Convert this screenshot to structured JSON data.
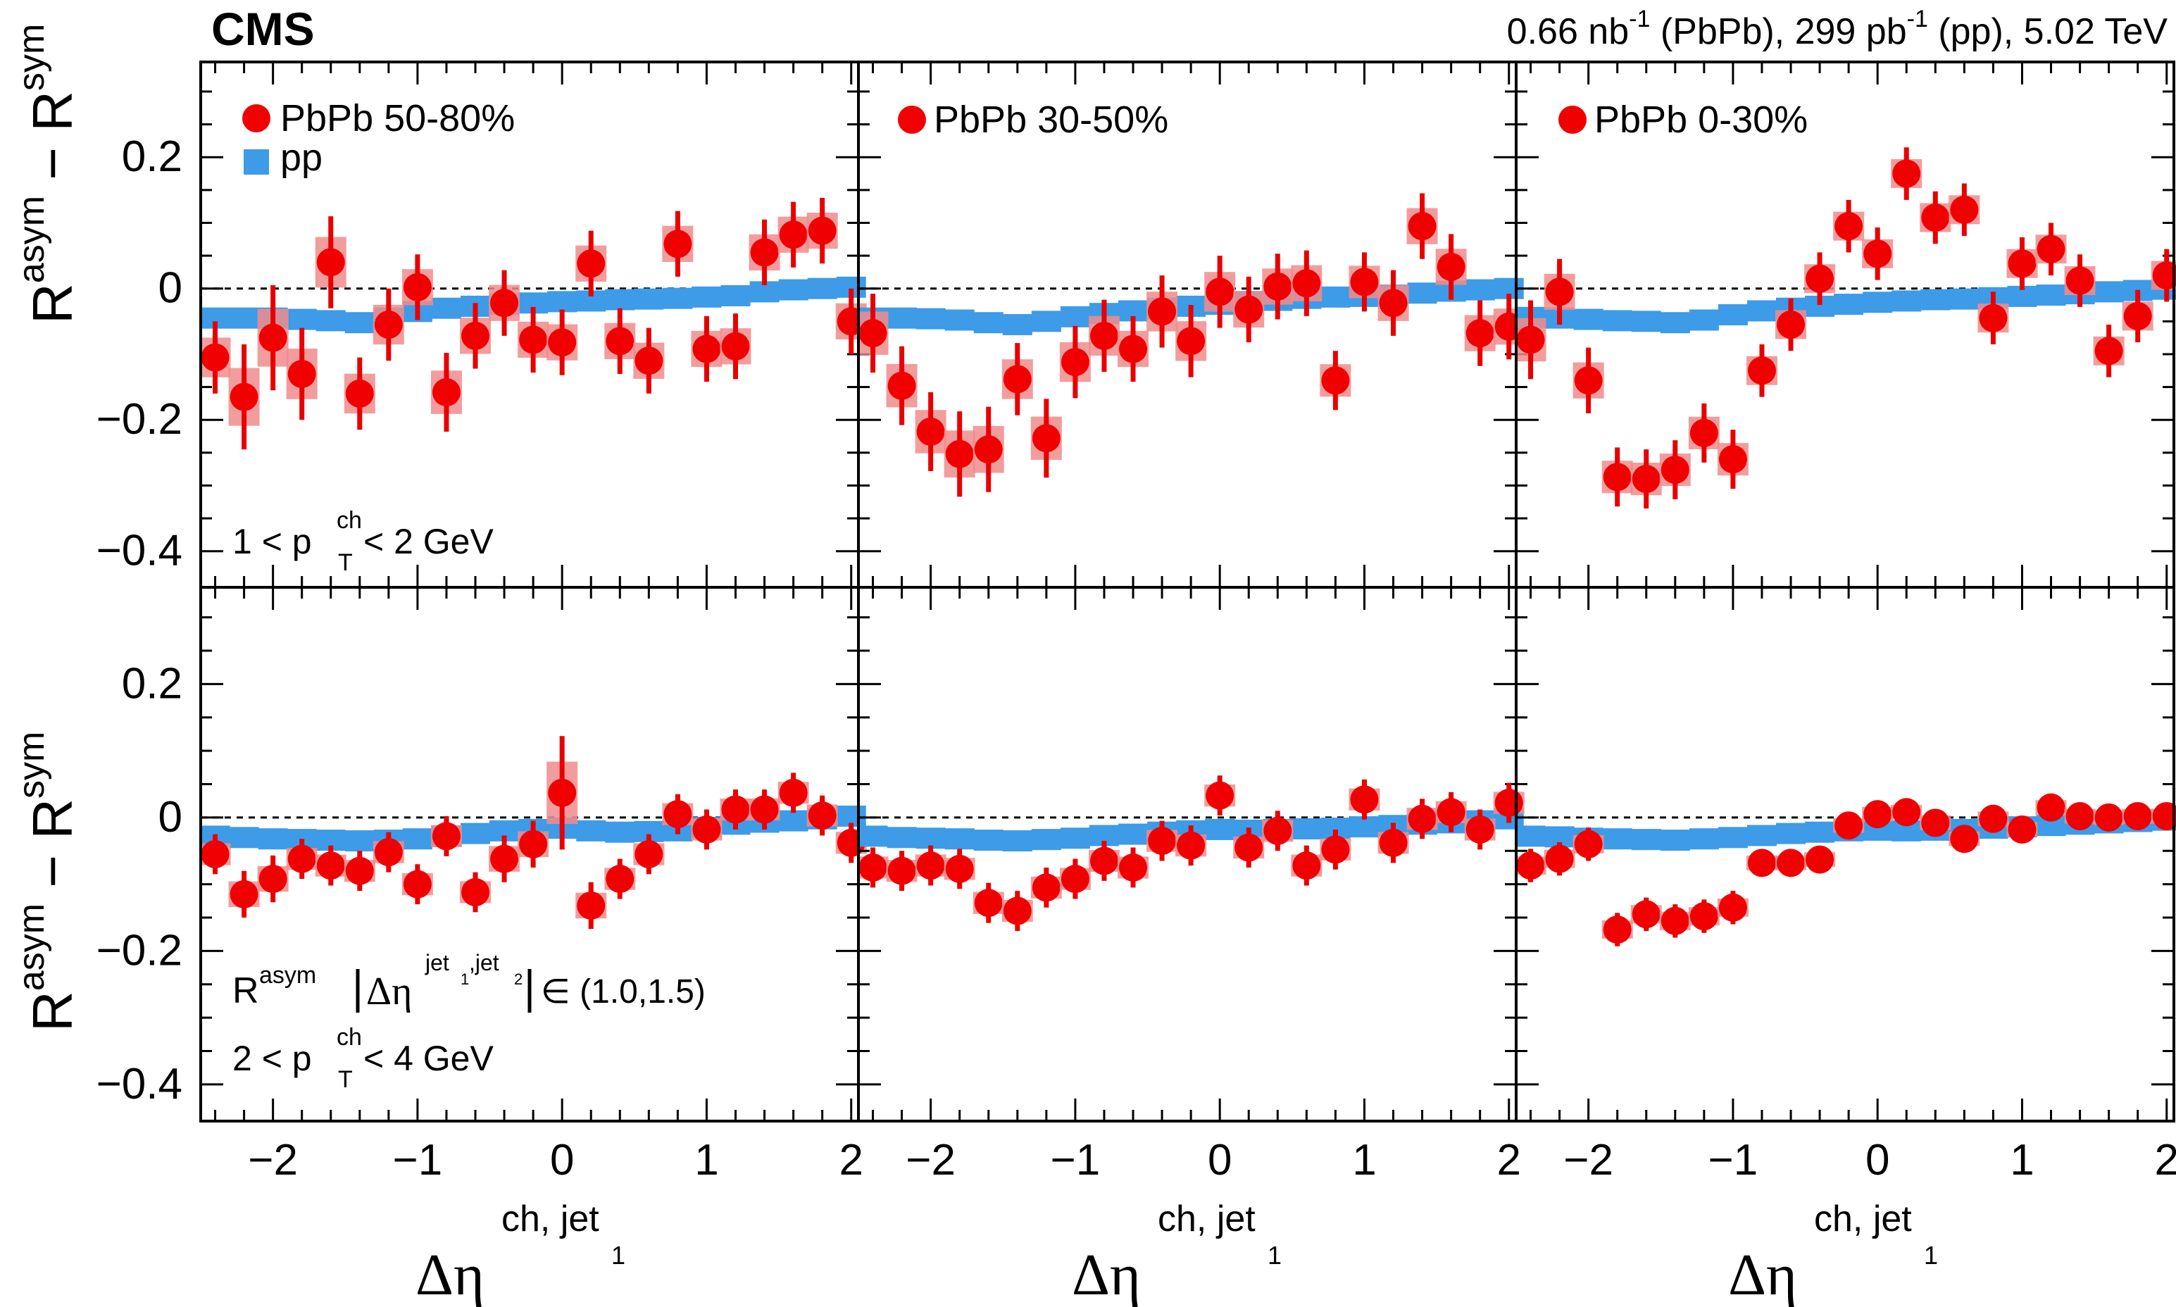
{
  "header": {
    "experiment": "CMS",
    "lumi_pbpb": "0.66 nb",
    "lumi_pbpb_sup": "-1",
    "lumi_pbpb_sys": " (PbPb), 299 pb",
    "lumi_pp_sup": "-1",
    "lumi_tail": " (pp), 5.02 TeV"
  },
  "labels": {
    "ylabel_a": "R",
    "ylabel_a_sup": "asym",
    "ylabel_minus": " − R",
    "ylabel_b_sup": "sym",
    "xlabel_main": "Δη",
    "xlabel_sup": "ch, jet",
    "xlabel_sub": "1",
    "row1_pt": "1 < p",
    "row1_pt_sup": "ch",
    "row1_pt_sub": "T",
    "row1_pt_tail": " < 2 GeV",
    "row2_pt": "2 < p",
    "row2_pt_sup": "ch",
    "row2_pt_sub": "T",
    "row2_pt_tail": " < 4 GeV",
    "deta_R": "R",
    "deta_R_sup": "asym",
    "deta_eta": "Δη",
    "deta_sup": "jet",
    "deta_sup_sub1": "1",
    "deta_sup_mid": ",jet",
    "deta_sup_sub2": "2",
    "deta_range": "∈ (1.0,1.5)"
  },
  "legend": {
    "pbpb_50_80": "PbPb 50-80%",
    "pp": "pp",
    "pbpb_30_50": "PbPb 30-50%",
    "pbpb_0_30": "PbPb 0-30%"
  },
  "colors": {
    "pbpb_marker": "#f00000",
    "pbpb_syst": "#f08c8c",
    "pp_marker": "#3d9be8"
  },
  "chart_data": {
    "type": "scatter",
    "title": "",
    "xlabel": "Δη^{ch, jet_1}",
    "ylabel": "R^{asym} − R^{sym}",
    "xlim": [
      -2.5,
      2.05
    ],
    "ylim_top_row": [
      -0.455,
      0.345
    ],
    "ylim_bottom_row": [
      -0.455,
      0.345
    ],
    "x_ticks": [
      -2,
      -1,
      0,
      1,
      2
    ],
    "x_tick_labels": [
      "−2",
      "−1",
      "0",
      "1",
      "2"
    ],
    "y_ticks": [
      0.2,
      0,
      -0.2,
      -0.4
    ],
    "y_tick_labels": [
      "0.2",
      "0",
      "−0.2",
      "−0.4"
    ],
    "reference_line": 0,
    "x": [
      -2.4,
      -2.2,
      -2.0,
      -1.8,
      -1.6,
      -1.4,
      -1.2,
      -1.0,
      -0.8,
      -0.6,
      -0.4,
      -0.2,
      0.0,
      0.2,
      0.4,
      0.6,
      0.8,
      1.0,
      1.2,
      1.4,
      1.6,
      1.8,
      2.0
    ],
    "panels": [
      {
        "row": 1,
        "col": 1,
        "centrality": "PbPb 50-80%",
        "pt_bin": "1 < pT < 2 GeV",
        "pbpb": [
          -0.105,
          -0.165,
          -0.075,
          -0.13,
          0.04,
          -0.16,
          -0.055,
          0.002,
          -0.158,
          -0.072,
          -0.022,
          -0.078,
          -0.082,
          0.038,
          -0.08,
          -0.11,
          0.068,
          -0.092,
          -0.088,
          0.055,
          0.082,
          0.088,
          -0.05
        ],
        "pbpb_err": [
          0.055,
          0.08,
          0.08,
          0.07,
          0.07,
          0.055,
          0.055,
          0.05,
          0.06,
          0.05,
          0.05,
          0.05,
          0.05,
          0.05,
          0.05,
          0.05,
          0.05,
          0.05,
          0.05,
          0.05,
          0.05,
          0.05,
          0.05
        ],
        "pp": [
          -0.045,
          -0.045,
          -0.045,
          -0.047,
          -0.049,
          -0.052,
          -0.045,
          -0.035,
          -0.03,
          -0.027,
          -0.024,
          -0.022,
          -0.02,
          -0.019,
          -0.017,
          -0.016,
          -0.015,
          -0.013,
          -0.011,
          -0.005,
          -0.002,
          0.0,
          0.002
        ]
      },
      {
        "row": 1,
        "col": 2,
        "centrality": "PbPb 30-50%",
        "pt_bin": "1 < pT < 2 GeV",
        "pbpb": [
          -0.068,
          -0.148,
          -0.218,
          -0.252,
          -0.245,
          -0.138,
          -0.228,
          -0.112,
          -0.072,
          -0.092,
          -0.035,
          -0.08,
          -0.005,
          -0.032,
          0.003,
          0.008,
          -0.14,
          0.01,
          -0.022,
          0.095,
          0.033,
          -0.068,
          -0.058
        ],
        "pbpb_err": [
          0.06,
          0.06,
          0.06,
          0.065,
          0.065,
          0.055,
          0.06,
          0.055,
          0.055,
          0.05,
          0.055,
          0.055,
          0.055,
          0.05,
          0.05,
          0.05,
          0.045,
          0.045,
          0.05,
          0.05,
          0.05,
          0.05,
          0.05
        ],
        "pp": [
          -0.045,
          -0.045,
          -0.046,
          -0.048,
          -0.052,
          -0.055,
          -0.05,
          -0.043,
          -0.038,
          -0.034,
          -0.03,
          -0.027,
          -0.024,
          -0.02,
          -0.018,
          -0.015,
          -0.013,
          -0.012,
          -0.01,
          -0.007,
          -0.004,
          -0.002,
          0.0
        ]
      },
      {
        "row": 1,
        "col": 3,
        "centrality": "PbPb 0-30%",
        "pt_bin": "1 < pT < 2 GeV",
        "pbpb": [
          -0.078,
          -0.005,
          -0.14,
          -0.287,
          -0.29,
          -0.276,
          -0.22,
          -0.26,
          -0.125,
          -0.055,
          0.015,
          0.095,
          0.053,
          0.175,
          0.108,
          0.12,
          -0.045,
          0.038,
          0.06,
          0.012,
          -0.095,
          -0.042,
          0.02
        ],
        "pbpb_err": [
          0.06,
          0.05,
          0.05,
          0.045,
          0.045,
          0.045,
          0.045,
          0.045,
          0.04,
          0.04,
          0.04,
          0.04,
          0.04,
          0.04,
          0.04,
          0.04,
          0.04,
          0.04,
          0.04,
          0.04,
          0.04,
          0.04,
          0.04
        ],
        "pp": [
          -0.044,
          -0.045,
          -0.047,
          -0.049,
          -0.05,
          -0.052,
          -0.048,
          -0.04,
          -0.034,
          -0.03,
          -0.027,
          -0.024,
          -0.021,
          -0.019,
          -0.017,
          -0.016,
          -0.014,
          -0.012,
          -0.01,
          -0.008,
          -0.005,
          -0.003,
          -0.001
        ]
      },
      {
        "row": 2,
        "col": 1,
        "centrality": "PbPb 50-80%",
        "pt_bin": "2 < pT < 4 GeV",
        "pbpb": [
          -0.055,
          -0.115,
          -0.092,
          -0.062,
          -0.072,
          -0.08,
          -0.052,
          -0.1,
          -0.028,
          -0.112,
          -0.062,
          -0.04,
          0.037,
          -0.132,
          -0.092,
          -0.055,
          0.005,
          -0.018,
          0.012,
          0.012,
          0.037,
          0.003,
          -0.038
        ],
        "pbpb_err": [
          0.03,
          0.035,
          0.035,
          0.03,
          0.03,
          0.03,
          0.03,
          0.03,
          0.03,
          0.03,
          0.035,
          0.035,
          0.085,
          0.035,
          0.03,
          0.03,
          0.03,
          0.03,
          0.03,
          0.03,
          0.03,
          0.03,
          0.03
        ],
        "pp": [
          -0.028,
          -0.03,
          -0.032,
          -0.033,
          -0.034,
          -0.035,
          -0.034,
          -0.032,
          -0.028,
          -0.024,
          -0.02,
          -0.018,
          -0.016,
          -0.02,
          -0.022,
          -0.021,
          -0.02,
          -0.015,
          -0.01,
          -0.007,
          -0.005,
          -0.002,
          0.002
        ]
      },
      {
        "row": 2,
        "col": 2,
        "centrality": "PbPb 30-50%",
        "pt_bin": "2 < pT < 4 GeV",
        "pbpb": [
          -0.075,
          -0.08,
          -0.072,
          -0.077,
          -0.128,
          -0.14,
          -0.105,
          -0.092,
          -0.065,
          -0.075,
          -0.035,
          -0.042,
          0.033,
          -0.045,
          -0.02,
          -0.072,
          -0.048,
          0.027,
          -0.038,
          -0.002,
          0.008,
          -0.018,
          0.022
        ],
        "pbpb_err": [
          0.03,
          0.03,
          0.03,
          0.03,
          0.03,
          0.03,
          0.03,
          0.03,
          0.03,
          0.03,
          0.03,
          0.03,
          0.03,
          0.03,
          0.03,
          0.03,
          0.03,
          0.03,
          0.03,
          0.03,
          0.03,
          0.03,
          0.03
        ],
        "pp": [
          -0.028,
          -0.03,
          -0.031,
          -0.032,
          -0.034,
          -0.035,
          -0.033,
          -0.031,
          -0.027,
          -0.025,
          -0.022,
          -0.02,
          -0.018,
          -0.019,
          -0.018,
          -0.017,
          -0.016,
          -0.014,
          -0.012,
          -0.01,
          -0.008,
          -0.005,
          -0.002
        ]
      },
      {
        "row": 2,
        "col": 3,
        "centrality": "PbPb 0-30%",
        "pt_bin": "2 < pT < 4 GeV",
        "pbpb": [
          -0.072,
          -0.062,
          -0.04,
          -0.168,
          -0.145,
          -0.155,
          -0.148,
          -0.135,
          -0.068,
          -0.068,
          -0.063,
          -0.012,
          0.005,
          0.008,
          -0.008,
          -0.032,
          -0.002,
          -0.018,
          0.015,
          0.002,
          0.0,
          0.002,
          0.002
        ],
        "pbpb_err": [
          0.025,
          0.025,
          0.025,
          0.025,
          0.025,
          0.025,
          0.025,
          0.025,
          0.02,
          0.02,
          0.02,
          0.02,
          0.02,
          0.02,
          0.02,
          0.02,
          0.02,
          0.02,
          0.02,
          0.02,
          0.02,
          0.02,
          0.02
        ],
        "pp": [
          -0.028,
          -0.029,
          -0.031,
          -0.032,
          -0.033,
          -0.034,
          -0.032,
          -0.03,
          -0.027,
          -0.024,
          -0.022,
          -0.02,
          -0.019,
          -0.02,
          -0.019,
          -0.018,
          -0.016,
          -0.014,
          -0.012,
          -0.01,
          -0.008,
          -0.006,
          -0.004
        ]
      }
    ]
  }
}
